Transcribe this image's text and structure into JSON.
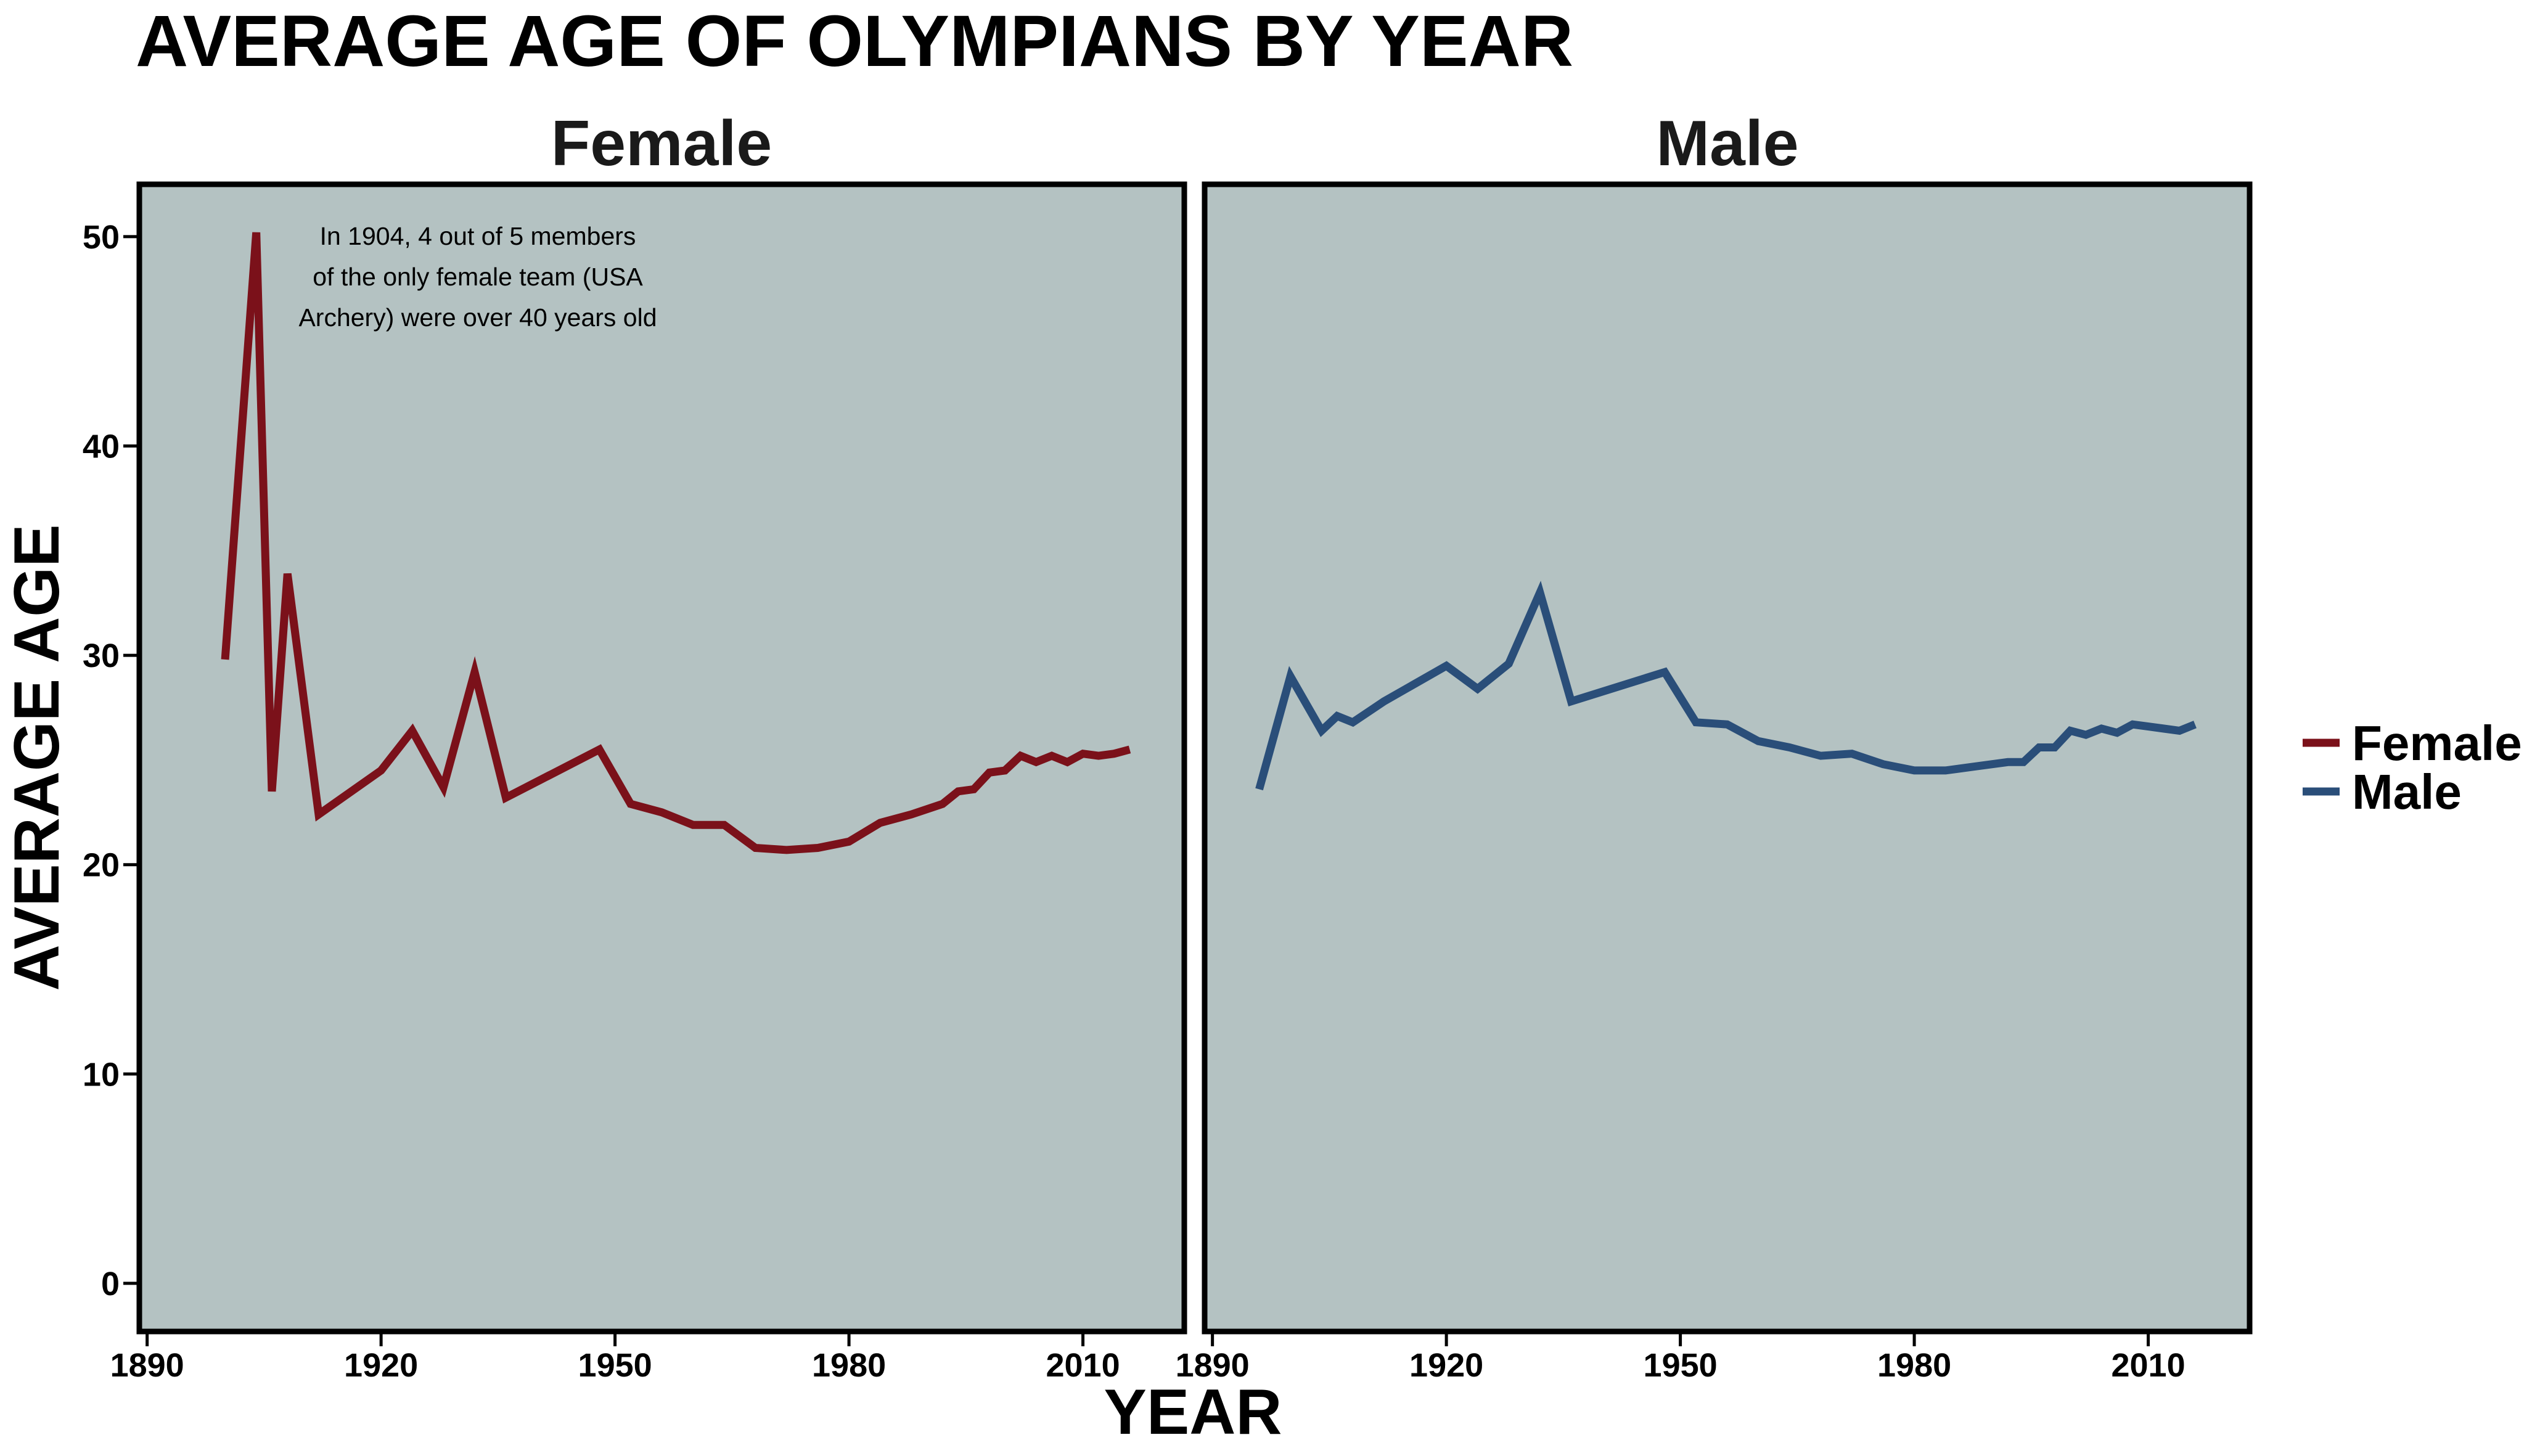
{
  "chart_data": {
    "type": "line",
    "title": "AVERAGE AGE OF OLYMPIANS BY YEAR",
    "xlabel": "YEAR",
    "ylabel": "AVERAGE AGE",
    "xlim": [
      1889,
      2023
    ],
    "ylim": [
      -2.3,
      52.5
    ],
    "x_ticks": [
      1890,
      1920,
      1950,
      1980,
      2010
    ],
    "y_ticks": [
      0,
      10,
      20,
      30,
      40,
      50
    ],
    "grid": false,
    "legend_position": "right",
    "facets": [
      "Female",
      "Male"
    ],
    "annotation": {
      "facet": "Female",
      "lines": [
        "In 1904, 4 out of 5 members",
        "of the only female team (USA",
        "Archery) were over 40 years old"
      ]
    },
    "series": [
      {
        "name": "Female",
        "color": "#7b111a",
        "x": [
          1900,
          1904,
          1906,
          1908,
          1912,
          1920,
          1924,
          1928,
          1932,
          1936,
          1948,
          1952,
          1956,
          1960,
          1964,
          1968,
          1972,
          1976,
          1980,
          1984,
          1988,
          1992,
          1994,
          1996,
          1998,
          2000,
          2002,
          2004,
          2006,
          2008,
          2010,
          2012,
          2014,
          2016
        ],
        "y": [
          29.8,
          50.2,
          23.5,
          33.9,
          22.4,
          24.5,
          26.4,
          23.7,
          29.2,
          23.2,
          25.5,
          22.9,
          22.5,
          21.9,
          21.9,
          20.8,
          20.7,
          20.8,
          21.1,
          22.0,
          22.4,
          22.9,
          23.5,
          23.6,
          24.4,
          24.5,
          25.2,
          24.9,
          25.2,
          24.9,
          25.3,
          25.2,
          25.3,
          25.5
        ]
      },
      {
        "name": "Male",
        "color": "#2a4e79",
        "x": [
          1896,
          1900,
          1904,
          1906,
          1908,
          1912,
          1920,
          1924,
          1928,
          1932,
          1936,
          1948,
          1952,
          1956,
          1960,
          1964,
          1968,
          1972,
          1976,
          1980,
          1984,
          1988,
          1992,
          1994,
          1996,
          1998,
          2000,
          2002,
          2004,
          2006,
          2008,
          2010,
          2012,
          2014,
          2016
        ],
        "y": [
          23.6,
          29.0,
          26.4,
          27.1,
          26.8,
          27.8,
          29.5,
          28.4,
          29.6,
          33.0,
          27.8,
          29.2,
          26.8,
          26.7,
          25.9,
          25.6,
          25.2,
          25.3,
          24.8,
          24.5,
          24.5,
          24.7,
          24.9,
          24.9,
          25.6,
          25.6,
          26.4,
          26.2,
          26.5,
          26.3,
          26.7,
          26.6,
          26.5,
          26.4,
          26.7
        ]
      }
    ]
  }
}
